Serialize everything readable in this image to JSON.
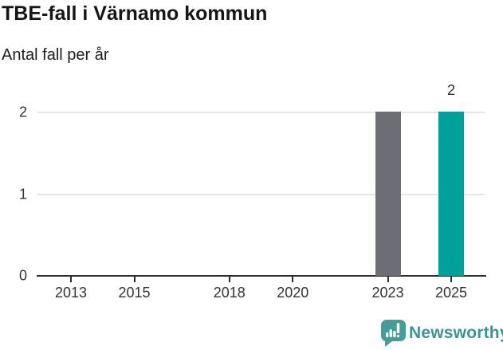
{
  "header": {
    "title": "TBE-fall i Värnamo kommun",
    "subtitle": "Antal fall per år"
  },
  "branding": {
    "logo_text": "Newsworthy",
    "logo_icon": "bar-chart-speech-bubble-icon",
    "icon_color": "#429e98",
    "text_color": "#3a9691"
  },
  "colors": {
    "bar_default": "#6d6d75",
    "bar_highlight": "#00a09b",
    "grid": "#e6e6e6",
    "axis": "#2d2d2d",
    "tick_text": "#333333",
    "title_text": "#151515"
  },
  "chart_data": {
    "type": "bar",
    "title": "TBE-fall i Värnamo kommun",
    "subtitle": "Antal fall per år",
    "x": [
      2023,
      2025
    ],
    "values": [
      2,
      2
    ],
    "bar_colors": [
      "#6d6d75",
      "#00a09b"
    ],
    "value_labels": [
      {
        "x": 2025,
        "text": "2"
      }
    ],
    "x_ticks": [
      2013,
      2015,
      2018,
      2020,
      2023,
      2025
    ],
    "y_ticks": [
      0,
      1,
      2
    ],
    "xlim": [
      2011.9,
      2026.1
    ],
    "ylim": [
      0,
      2
    ],
    "xlabel": "",
    "ylabel": "",
    "grid": "horizontal",
    "legend": "none"
  }
}
